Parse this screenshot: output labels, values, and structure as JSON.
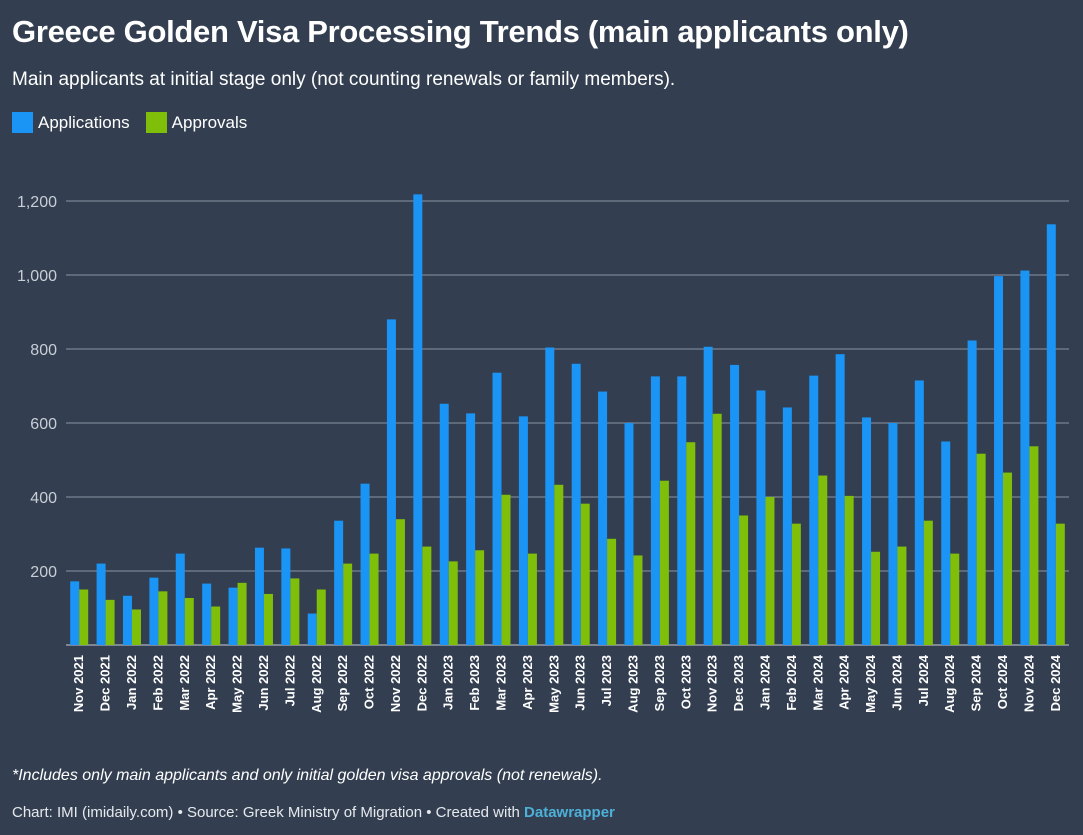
{
  "title": "Greece Golden Visa Processing Trends (main applicants only)",
  "subtitle": "Main applicants at initial stage only (not counting renewals or family members).",
  "footnote": "*Includes only main applicants and only initial golden visa approvals (not renewals).",
  "credits": {
    "prefix": "Chart: IMI (imidaily.com) • Source: Greek Ministry of Migration • Created with ",
    "link_text": "Datawrapper"
  },
  "colors": {
    "background": "#333f50",
    "applications": "#1a94f5",
    "approvals": "#7fbf0a",
    "grid": "#8a95a3",
    "link": "#4db0d8"
  },
  "chart_data": {
    "type": "bar",
    "categories": [
      "Nov 2021",
      "Dec 2021",
      "Jan 2022",
      "Feb 2022",
      "Mar 2022",
      "Apr 2022",
      "May 2022",
      "Jun 2022",
      "Jul 2022",
      "Aug 2022",
      "Sep 2022",
      "Oct 2022",
      "Nov 2022",
      "Dec 2022",
      "Jan 2023",
      "Feb 2023",
      "Mar 2023",
      "Apr 2023",
      "May 2023",
      "Jun 2023",
      "Jul 2023",
      "Aug 2023",
      "Sep 2023",
      "Oct 2023",
      "Nov 2023",
      "Dec 2023",
      "Jan 2024",
      "Feb 2024",
      "Mar 2024",
      "Apr 2024",
      "May 2024",
      "Jun 2024",
      "Jul 2024",
      "Aug 2024",
      "Sep 2024",
      "Oct 2024",
      "Nov 2024",
      "Dec 2024"
    ],
    "series": [
      {
        "name": "Applications",
        "color": "#1a94f5",
        "values": [
          172,
          220,
          133,
          182,
          247,
          166,
          155,
          263,
          261,
          85,
          336,
          436,
          880,
          1218,
          652,
          626,
          736,
          618,
          804,
          760,
          685,
          600,
          726,
          726,
          806,
          757,
          688,
          642,
          728,
          786,
          615,
          600,
          715,
          550,
          823,
          997,
          1012,
          1137
        ]
      },
      {
        "name": "Approvals",
        "color": "#7fbf0a",
        "values": [
          150,
          122,
          96,
          145,
          127,
          104,
          168,
          138,
          180,
          150,
          220,
          247,
          340,
          266,
          226,
          256,
          406,
          247,
          433,
          382,
          287,
          242,
          444,
          548,
          625,
          350,
          400,
          328,
          458,
          403,
          252,
          266,
          336,
          247,
          517,
          466,
          537,
          328
        ]
      }
    ],
    "yticks": [
      200,
      400,
      600,
      800,
      1000,
      1200
    ],
    "ytick_labels": [
      "200",
      "400",
      "600",
      "800",
      "1,000",
      "1,200"
    ],
    "ylim": [
      0,
      1200
    ],
    "grid": true,
    "legend_position": "top-left"
  }
}
